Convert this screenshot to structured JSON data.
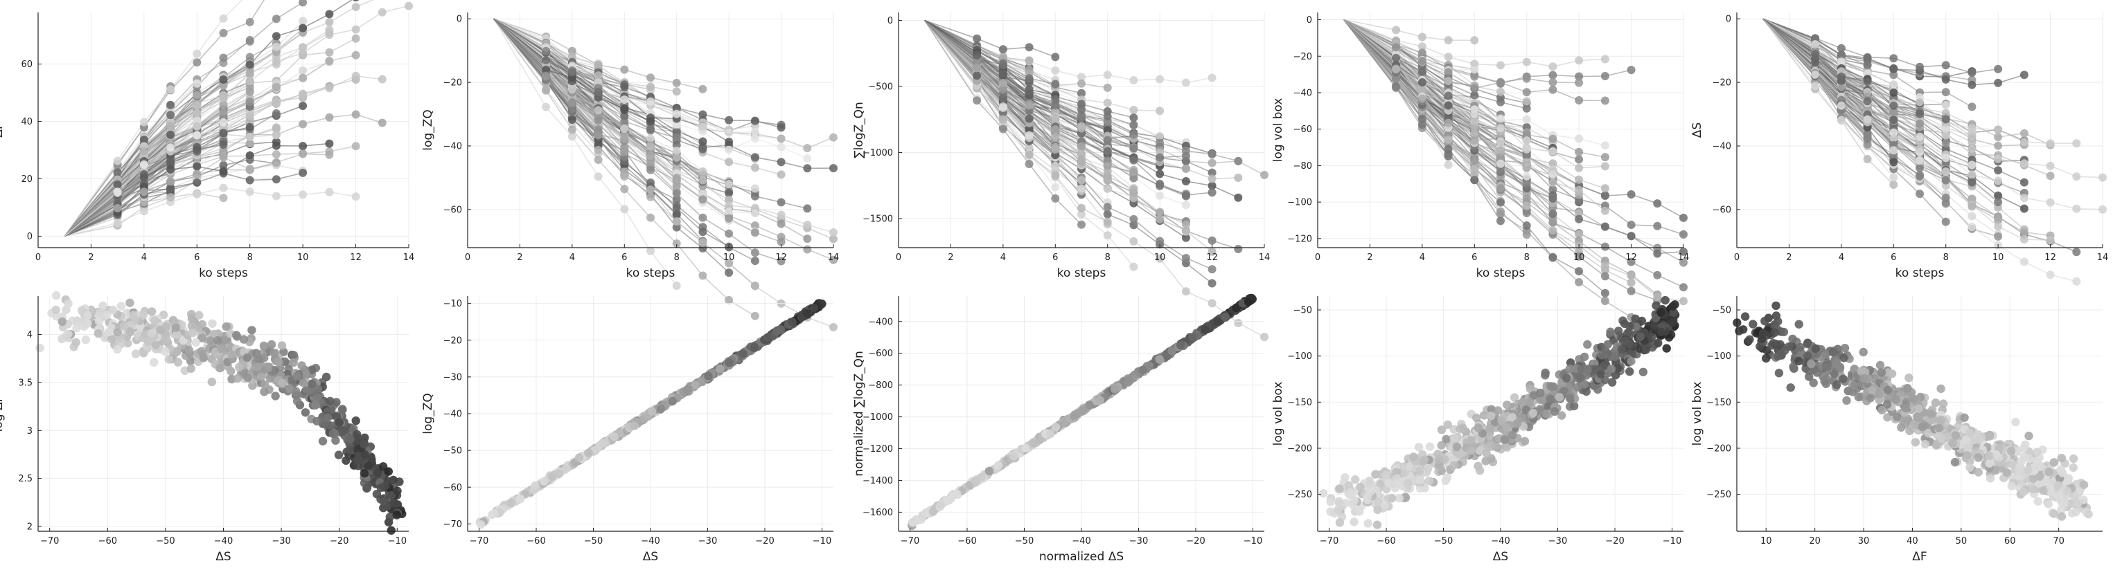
{
  "chart_data": [
    {
      "type": "scatter",
      "variant": "lines-with-markers",
      "xlabel": "ko steps",
      "ylabel": "ΔF",
      "xlim": [
        0,
        14
      ],
      "ylim": [
        -4,
        78
      ],
      "xticks": [
        0,
        2,
        4,
        6,
        8,
        10,
        12,
        14
      ],
      "yticks": [
        0,
        20,
        40,
        60
      ],
      "grid": true,
      "legend": "none",
      "ntraj": 140,
      "series": [
        {
          "name": "",
          "x": [
            1,
            3,
            4,
            5,
            6,
            7,
            8,
            10
          ],
          "y": [
            0,
            10,
            18,
            24,
            33,
            40,
            45,
            55
          ]
        },
        {
          "name": "",
          "x": [
            1,
            3,
            4,
            5,
            6,
            7,
            10,
            12,
            14
          ],
          "y": [
            0,
            6,
            12,
            20,
            30,
            38,
            45,
            52,
            65
          ]
        },
        {
          "name": "",
          "x": [
            1,
            3,
            4,
            5,
            6
          ],
          "y": [
            0,
            15,
            28,
            40,
            55
          ]
        }
      ],
      "trend": {
        "x": [
          1,
          3,
          4,
          5,
          6,
          7,
          8,
          9,
          10,
          11,
          12,
          13,
          14
        ],
        "y": [
          0,
          15,
          24,
          31,
          37,
          42,
          46,
          50,
          54,
          58,
          61,
          63,
          65
        ]
      }
    },
    {
      "type": "scatter",
      "variant": "lines-with-markers",
      "xlabel": "ko steps",
      "ylabel": "log_ZQ",
      "xlim": [
        0,
        14
      ],
      "ylim": [
        -72,
        2
      ],
      "xticks": [
        0,
        2,
        4,
        6,
        8,
        10,
        12,
        14
      ],
      "yticks": [
        0,
        -20,
        -40,
        -60
      ],
      "grid": true,
      "legend": "none",
      "ntraj": 140,
      "trend": {
        "x": [
          1,
          3,
          4,
          5,
          6,
          7,
          8,
          9,
          10,
          11,
          12,
          13,
          14
        ],
        "y": [
          0,
          -14,
          -22,
          -28,
          -34,
          -39,
          -44,
          -49,
          -53,
          -56,
          -59,
          -61,
          -63
        ]
      }
    },
    {
      "type": "scatter",
      "variant": "lines-with-markers",
      "xlabel": "ko steps",
      "ylabel": "∑logZ_Qn",
      "xlim": [
        0,
        14
      ],
      "ylim": [
        -1720,
        60
      ],
      "xticks": [
        0,
        2,
        4,
        6,
        8,
        10,
        12,
        14
      ],
      "yticks": [
        0,
        -500,
        -1000,
        -1500
      ],
      "grid": true,
      "legend": "none",
      "ntraj": 140,
      "trend": {
        "x": [
          1,
          3,
          4,
          5,
          6,
          7,
          8,
          9,
          10,
          11,
          12,
          13,
          14
        ],
        "y": [
          0,
          -350,
          -520,
          -680,
          -820,
          -940,
          -1050,
          -1150,
          -1250,
          -1330,
          -1400,
          -1460,
          -1510
        ]
      }
    },
    {
      "type": "scatter",
      "variant": "lines-with-markers",
      "xlabel": "ko steps",
      "ylabel": "log vol box",
      "xlim": [
        0,
        14
      ],
      "ylim": [
        -125,
        4
      ],
      "xticks": [
        0,
        2,
        4,
        6,
        8,
        10,
        12,
        14
      ],
      "yticks": [
        0,
        -20,
        -40,
        -60,
        -80,
        -100,
        -120
      ],
      "grid": true,
      "legend": "none",
      "ntraj": 140,
      "trend": {
        "x": [
          1,
          3,
          4,
          5,
          6,
          7,
          8,
          9,
          10,
          11,
          12,
          13,
          14
        ],
        "y": [
          0,
          -26,
          -40,
          -52,
          -62,
          -72,
          -80,
          -88,
          -95,
          -101,
          -106,
          -110,
          -114
        ]
      }
    },
    {
      "type": "scatter",
      "variant": "lines-with-markers",
      "xlabel": "ko steps",
      "ylabel": "ΔS",
      "xlim": [
        0,
        14
      ],
      "ylim": [
        -72,
        2
      ],
      "xticks": [
        0,
        2,
        4,
        6,
        8,
        10,
        12,
        14
      ],
      "yticks": [
        0,
        -20,
        -40,
        -60
      ],
      "grid": true,
      "legend": "none",
      "ntraj": 140,
      "trend": {
        "x": [
          1,
          3,
          4,
          5,
          6,
          7,
          8,
          9,
          10,
          11,
          12,
          13,
          14
        ],
        "y": [
          0,
          -14,
          -22,
          -28,
          -34,
          -39,
          -44,
          -49,
          -53,
          -56,
          -59,
          -61,
          -63
        ]
      }
    },
    {
      "type": "scatter",
      "xlabel": "ΔS",
      "ylabel": "log ΔF",
      "xlim": [
        -72,
        -8
      ],
      "ylim": [
        1.95,
        4.4
      ],
      "xticks": [
        -70,
        -60,
        -50,
        -40,
        -30,
        -20,
        -10
      ],
      "yticks": [
        2.0,
        2.5,
        3.0,
        3.5,
        4.0
      ],
      "grid": true,
      "legend": "none",
      "npoints": 700,
      "curve": {
        "x": [
          -70,
          -60,
          -50,
          -40,
          -30,
          -25,
          -20,
          -15,
          -10
        ],
        "y": [
          4.2,
          4.1,
          3.98,
          3.85,
          3.6,
          3.4,
          3.05,
          2.65,
          2.2
        ]
      }
    },
    {
      "type": "scatter",
      "xlabel": "ΔS",
      "ylabel": "log_ZQ",
      "xlim": [
        -72,
        -8
      ],
      "ylim": [
        -72,
        -8
      ],
      "xticks": [
        -70,
        -60,
        -50,
        -40,
        -30,
        -20,
        -10
      ],
      "yticks": [
        -10,
        -20,
        -30,
        -40,
        -50,
        -60,
        -70
      ],
      "grid": true,
      "legend": "none",
      "npoints": 700,
      "curve": {
        "x": [
          -70,
          -10
        ],
        "y": [
          -70,
          -10
        ]
      }
    },
    {
      "type": "scatter",
      "xlabel": "normalized ΔS",
      "ylabel": "normalized ∑logZ_Qn",
      "xlim": [
        -72,
        -8
      ],
      "ylim": [
        -1720,
        -240
      ],
      "xticks": [
        -70,
        -60,
        -50,
        -40,
        -30,
        -20,
        -10
      ],
      "yticks": [
        -400,
        -600,
        -800,
        -1000,
        -1200,
        -1400,
        -1600
      ],
      "grid": true,
      "legend": "none",
      "npoints": 700,
      "curve": {
        "x": [
          -70,
          -10
        ],
        "y": [
          -1680,
          -250
        ]
      }
    },
    {
      "type": "scatter",
      "xlabel": "ΔS",
      "ylabel": "log vol box",
      "xlim": [
        -72,
        -8
      ],
      "ylim": [
        -290,
        -35
      ],
      "xticks": [
        -70,
        -60,
        -50,
        -40,
        -30,
        -20,
        -10
      ],
      "yticks": [
        -50,
        -100,
        -150,
        -200,
        -250
      ],
      "grid": true,
      "legend": "none",
      "npoints": 700,
      "curve": {
        "x": [
          -70,
          -60,
          -50,
          -40,
          -30,
          -20,
          -10
        ],
        "y": [
          -270,
          -240,
          -210,
          -180,
          -140,
          -100,
          -60
        ]
      }
    },
    {
      "type": "scatter",
      "xlabel": "ΔF",
      "ylabel": "log vol box",
      "xlim": [
        4,
        79
      ],
      "ylim": [
        -290,
        -35
      ],
      "xticks": [
        10,
        20,
        30,
        40,
        50,
        60,
        70
      ],
      "yticks": [
        -50,
        -100,
        -150,
        -200,
        -250
      ],
      "grid": true,
      "legend": "none",
      "npoints": 700,
      "curve": {
        "x": [
          5,
          15,
          25,
          35,
          45,
          55,
          65,
          75
        ],
        "y": [
          -70,
          -95,
          -115,
          -140,
          -175,
          -205,
          -230,
          -250
        ]
      }
    }
  ]
}
